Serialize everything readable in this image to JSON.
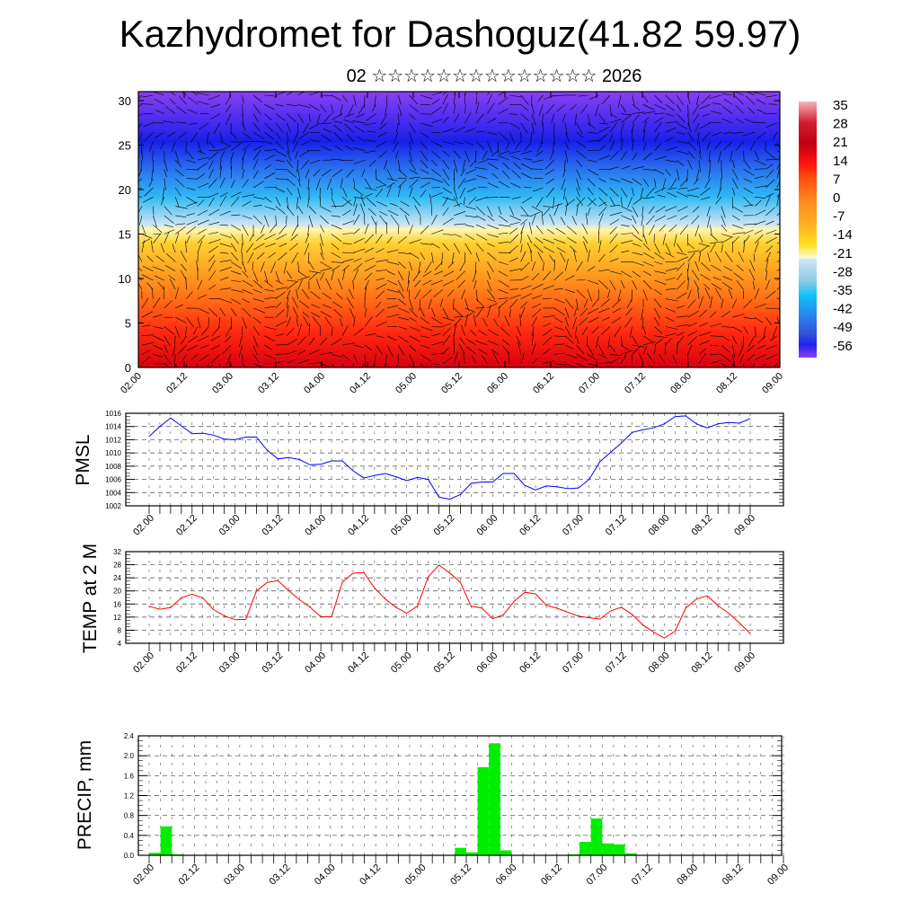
{
  "title": "Kazhydromet for Dashoguz(41.82 59.97)",
  "subtitle": "02 ☆☆☆☆☆☆☆☆☆☆☆☆☆☆ 2026",
  "colors": {
    "pmsl": "#0000ff",
    "temp": "#ff0000",
    "precip": "#00ee00"
  },
  "chart_data": [
    {
      "type": "heatmap",
      "name": "cross-section",
      "description_kind": "filled contour with wind vectors",
      "x_tick_labels": [
        "02.00",
        "02.12",
        "03.00",
        "03.12",
        "04.00",
        "04.12",
        "05.00",
        "05.12",
        "06.00",
        "06.12",
        "07.00",
        "07.12",
        "08.00",
        "08.12",
        "09.00"
      ],
      "y_tick_labels": [
        "0",
        "5",
        "10",
        "15",
        "20",
        "25",
        "30"
      ],
      "ylim": [
        0,
        30
      ],
      "colorbar": {
        "labels": [
          "35",
          "28",
          "21",
          "14",
          "7",
          "0",
          "-7",
          "-14",
          "-21",
          "-28",
          "-35",
          "-42",
          "-49",
          "-56"
        ],
        "range": [
          -60,
          38
        ]
      }
    },
    {
      "type": "line",
      "name": "pmsl",
      "ylabel": "PMSL",
      "ylim": [
        1002,
        1016
      ],
      "y_tick_labels": [
        "1002",
        "1004",
        "1006",
        "1008",
        "1010",
        "1012",
        "1014",
        "1016"
      ],
      "x_tick_labels": [
        "02.00",
        "02.12",
        "03.00",
        "03.12",
        "04.00",
        "04.12",
        "05.00",
        "05.12",
        "06.00",
        "06.12",
        "07.00",
        "07.12",
        "08.00",
        "08.12",
        "09.00"
      ],
      "step_hours": 3,
      "values": [
        1012.5,
        1014.0,
        1015.3,
        1014.1,
        1012.9,
        1013.0,
        1012.7,
        1012.1,
        1012.0,
        1012.4,
        1012.4,
        1010.4,
        1009.1,
        1009.3,
        1009.0,
        1008.2,
        1008.3,
        1008.8,
        1008.8,
        1007.3,
        1006.2,
        1006.6,
        1006.9,
        1006.4,
        1005.8,
        1006.3,
        1006.0,
        1003.3,
        1003.0,
        1003.7,
        1005.4,
        1005.6,
        1005.6,
        1006.9,
        1006.9,
        1005.1,
        1004.4,
        1005.0,
        1004.9,
        1004.6,
        1004.7,
        1006.0,
        1008.7,
        1010.1,
        1011.5,
        1013.1,
        1013.5,
        1013.8,
        1014.4,
        1015.5,
        1015.6,
        1014.4,
        1013.8,
        1014.4,
        1014.6,
        1014.5,
        1015.2
      ]
    },
    {
      "type": "line",
      "name": "temp",
      "ylabel": "TEMP at 2 M",
      "ylim": [
        4,
        32
      ],
      "y_tick_labels": [
        "4",
        "8",
        "12",
        "16",
        "20",
        "24",
        "28",
        "32"
      ],
      "x_tick_labels": [
        "02.00",
        "02.12",
        "03.00",
        "03.12",
        "04.00",
        "04.12",
        "05.00",
        "05.12",
        "06.00",
        "06.12",
        "07.00",
        "07.12",
        "08.00",
        "08.12",
        "09.00"
      ],
      "step_hours": 3,
      "values": [
        15.3,
        14.4,
        14.9,
        17.9,
        19.0,
        17.9,
        14.3,
        12.4,
        11.2,
        11.3,
        20.0,
        22.6,
        23.1,
        20.1,
        17.3,
        15.0,
        12.1,
        12.1,
        22.7,
        25.4,
        25.6,
        20.9,
        17.5,
        15.0,
        13.2,
        15.4,
        24.3,
        27.9,
        25.5,
        22.6,
        15.3,
        14.8,
        11.5,
        12.7,
        16.8,
        19.6,
        19.1,
        15.6,
        14.7,
        13.5,
        12.3,
        11.8,
        11.4,
        13.9,
        15.0,
        12.8,
        9.6,
        7.4,
        5.6,
        7.7,
        14.8,
        17.5,
        18.5,
        15.5,
        13.2,
        10.2,
        7.0
      ]
    },
    {
      "type": "bar",
      "name": "precip",
      "ylabel": "PRECIP, mm",
      "ylim": [
        0,
        2.4
      ],
      "y_tick_labels": [
        "0.0",
        "0.4",
        "0.8",
        "1.2",
        "1.6",
        "2.0",
        "2.4"
      ],
      "x_tick_labels": [
        "02.00",
        "02.12",
        "03.00",
        "03.12",
        "04.00",
        "04.12",
        "05.00",
        "05.12",
        "06.00",
        "06.12",
        "07.00",
        "07.12",
        "08.00",
        "08.12",
        "09.00"
      ],
      "step_hours": 3,
      "values": [
        0.05,
        0.58,
        0.02,
        0,
        0,
        0,
        0,
        0,
        0,
        0,
        0,
        0,
        0,
        0,
        0,
        0,
        0,
        0,
        0,
        0,
        0,
        0,
        0,
        0,
        0,
        0,
        0,
        0.15,
        0.06,
        1.77,
        2.25,
        0.1,
        0,
        0,
        0,
        0,
        0,
        0.02,
        0.27,
        0.74,
        0.24,
        0.22,
        0.04,
        0,
        0,
        0,
        0,
        0,
        0,
        0,
        0,
        0,
        0,
        0,
        0,
        0
      ]
    }
  ]
}
